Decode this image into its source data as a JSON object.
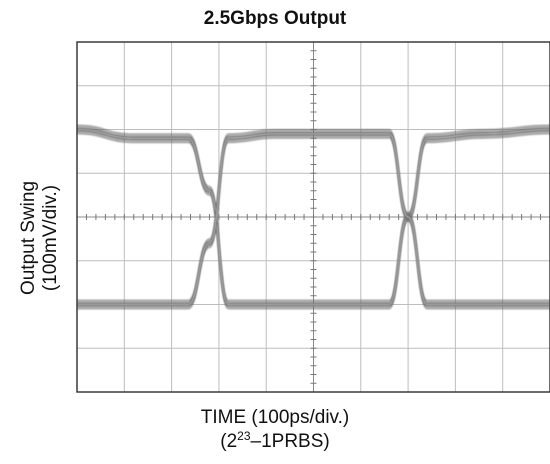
{
  "chart_data": {
    "type": "line",
    "title": "2.5Gbps Output",
    "ylabel_line1": "Output Swing",
    "ylabel_line2": "(100mV/div.)",
    "xlabel_line1": "TIME (100ps/div.)",
    "xlabel_line2_base": "(2",
    "xlabel_line2_sup": "23",
    "xlabel_line2_rest": "–1PRBS)",
    "x_divisions": 10,
    "y_divisions": 8,
    "grid": true,
    "trace_color": "#6f6f6f",
    "grid_color": "#bdbdbd",
    "series": [
      {
        "x": [
          0,
          1.2,
          2.35,
          2.8,
          3.2,
          4.2,
          5.6,
          6.6,
          7.0,
          7.4,
          8.6,
          10
        ],
        "y": [
          2.0,
          1.8,
          1.8,
          0.6,
          -2.0,
          -2.0,
          -2.0,
          -2.0,
          0.0,
          1.8,
          1.9,
          2.0
        ]
      },
      {
        "x": [
          0,
          1.2,
          2.35,
          2.8,
          3.2,
          4.2,
          5.6,
          6.6,
          7.0,
          7.4,
          8.6,
          10
        ],
        "y": [
          -2.0,
          -2.0,
          -2.0,
          -0.6,
          1.8,
          1.9,
          1.9,
          1.9,
          0.0,
          -2.0,
          -2.0,
          -2.0
        ]
      }
    ]
  }
}
